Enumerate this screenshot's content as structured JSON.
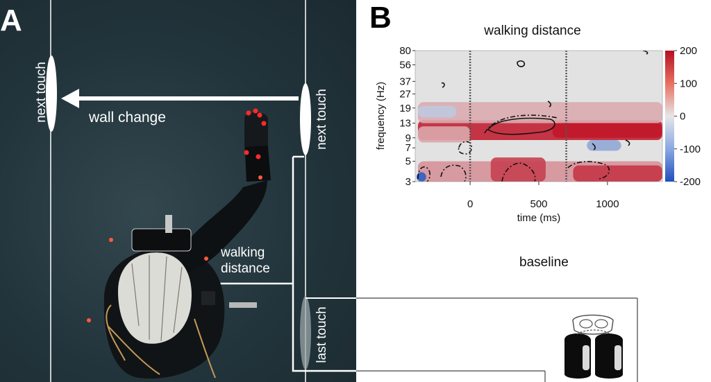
{
  "panel_a": {
    "letter": "A",
    "labels": {
      "next_touch_left": "next touch",
      "next_touch_right": "next touch",
      "wall_change": "wall change",
      "walking_distance_line1": "walking",
      "walking_distance_line2": "distance",
      "last_touch": "last touch"
    }
  },
  "panel_b": {
    "letter": "B",
    "baseline_title": "baseline"
  },
  "chart_data": {
    "type": "heatmap",
    "title": "walking distance",
    "xlabel": "time (ms)",
    "ylabel": "frequency (Hz)",
    "xlim": [
      -400,
      1400
    ],
    "x_ticks": [
      0,
      500,
      1000
    ],
    "x_tick_labels": [
      "0",
      "500",
      "1000"
    ],
    "y_scale": "log",
    "y_ticks": [
      3,
      5,
      7,
      9,
      13,
      19,
      27,
      37,
      56,
      80
    ],
    "y_tick_labels": [
      "3",
      "5",
      "7",
      "9",
      "13",
      "19",
      "27",
      "37",
      "56",
      "80"
    ],
    "ylim": [
      3,
      80
    ],
    "colorbar": {
      "ticks": [
        200,
        100,
        0,
        -100,
        -200
      ],
      "tick_labels": [
        "200",
        "100",
        "0",
        "-100",
        "-200"
      ],
      "range": [
        -200,
        200
      ],
      "colors": {
        "low": "#2c5fc4",
        "mid": "#e4e4e4",
        "high": "#c0172a"
      }
    },
    "event_lines_ms": [
      0,
      700
    ],
    "regions": [
      {
        "t_from": -380,
        "t_to": 1400,
        "f_from": 8.5,
        "f_to": 14,
        "value": 190
      },
      {
        "t_from": -380,
        "t_to": 0,
        "f_from": 8,
        "f_to": 12,
        "value": 60
      },
      {
        "t_from": -380,
        "t_to": 1400,
        "f_from": 13,
        "f_to": 22,
        "value": 55
      },
      {
        "t_from": -380,
        "t_to": 1400,
        "f_from": 3,
        "f_to": 5,
        "value": 80
      },
      {
        "t_from": 150,
        "t_to": 550,
        "f_from": 3,
        "f_to": 5.5,
        "value": 160
      },
      {
        "t_from": 750,
        "t_to": 1400,
        "f_from": 3,
        "f_to": 4.5,
        "value": 170
      },
      {
        "t_from": 850,
        "t_to": 1100,
        "f_from": 6.5,
        "f_to": 8.5,
        "value": -90
      },
      {
        "t_from": -390,
        "t_to": -320,
        "f_from": 3,
        "f_to": 3.8,
        "value": -200
      },
      {
        "t_from": -380,
        "t_to": -100,
        "f_from": 15,
        "f_to": 20,
        "value": -40
      },
      {
        "t_from": 600,
        "t_to": 1400,
        "f_from": 9,
        "f_to": 13,
        "value": 200
      }
    ]
  }
}
